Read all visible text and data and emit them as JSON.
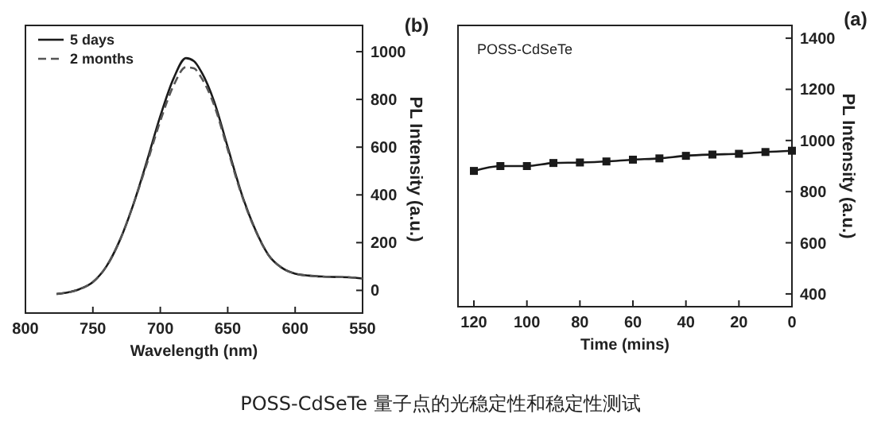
{
  "chart_data": [
    {
      "type": "line",
      "xlabel": "Wavelength (nm)",
      "ylabel": "PL Intensity (a.u.)",
      "annotations": [
        "(b)",
        "POSS-CdSeTe 量子点的光稳定性和稳定性测试"
      ],
      "xlim": [
        800,
        550
      ],
      "ylim": [
        -95,
        1110
      ],
      "xticks": [
        800,
        750,
        700,
        650,
        600,
        550
      ],
      "yticks": [
        0,
        200,
        400,
        600,
        800,
        1000
      ],
      "legend": "top left",
      "marker": "none",
      "x": [
        777,
        770,
        760,
        750,
        740,
        730,
        720,
        710,
        700,
        690,
        681,
        675,
        670,
        660,
        650,
        640,
        630,
        620,
        610,
        600,
        590,
        580,
        570,
        560,
        550
      ],
      "series": [
        {
          "name": "5 days",
          "color": "#1a1a1a",
          "line_style": "solid",
          "values": [
            -15,
            -10,
            5,
            35,
            100,
            210,
            360,
            540,
            730,
            890,
            973,
            960,
            920,
            790,
            600,
            410,
            260,
            150,
            95,
            70,
            62,
            58,
            56,
            55,
            50
          ]
        },
        {
          "name": "2 months",
          "color": "#555555",
          "line_style": "dashed",
          "values": [
            -15,
            -10,
            5,
            35,
            100,
            210,
            360,
            530,
            710,
            860,
            935,
            930,
            895,
            775,
            590,
            405,
            258,
            150,
            95,
            70,
            62,
            58,
            56,
            55,
            50
          ]
        }
      ]
    },
    {
      "type": "line",
      "xlabel": "Time (mins)",
      "ylabel": "PL Intensity (a.u.)",
      "annotations": [
        "(a)",
        "POSS-CdSeTe"
      ],
      "xlim": [
        126,
        0
      ],
      "ylim": [
        350,
        1450
      ],
      "xticks": [
        120,
        100,
        80,
        60,
        40,
        20,
        0
      ],
      "yticks": [
        400,
        600,
        800,
        1000,
        1200,
        1400
      ],
      "marker": "square",
      "x": [
        0,
        10,
        20,
        30,
        40,
        50,
        60,
        70,
        80,
        90,
        100,
        110,
        120
      ],
      "series": [
        {
          "color": "#1a1a1a",
          "values": [
            960,
            955,
            948,
            945,
            940,
            930,
            925,
            918,
            914,
            912,
            900,
            900,
            881
          ]
        }
      ]
    }
  ]
}
